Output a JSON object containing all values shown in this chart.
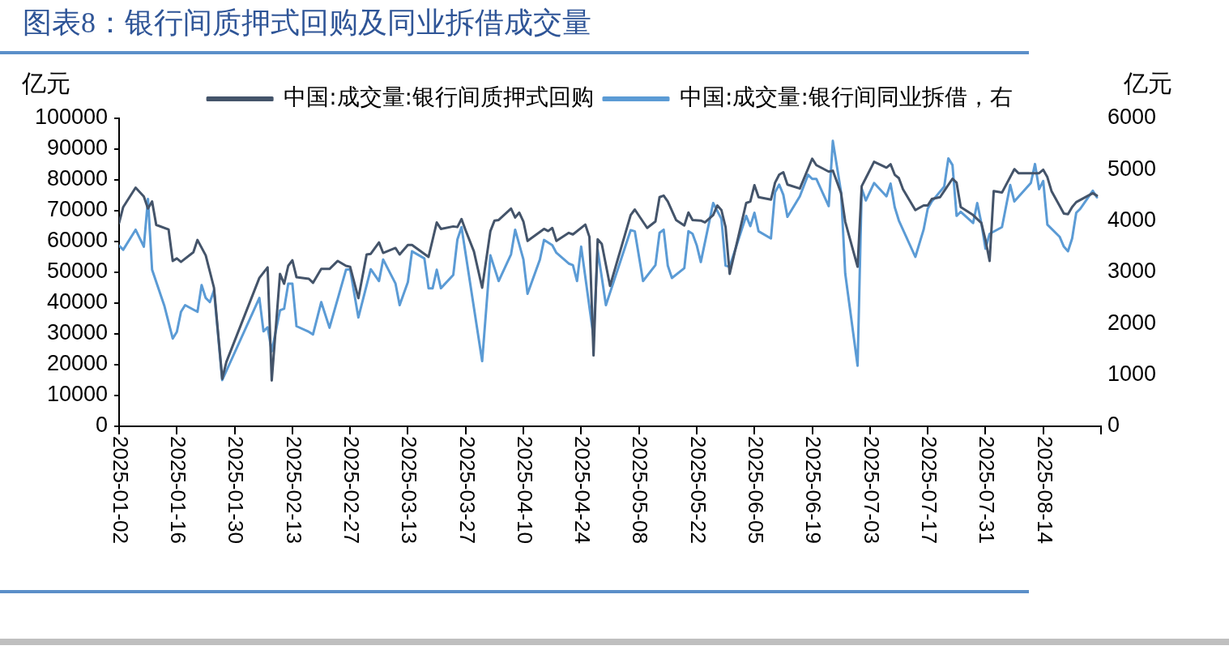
{
  "chart_data": {
    "type": "line",
    "title": "图表8：银行间质押式回购及同业拆借成交量",
    "ylabel": "亿元",
    "y2label": "亿元",
    "xlim": [
      "2025-01-02",
      "2025-08-28"
    ],
    "xticks": [
      "2025-01-02",
      "2025-01-16",
      "2025-01-30",
      "2025-02-13",
      "2025-02-27",
      "2025-03-13",
      "2025-03-27",
      "2025-04-10",
      "2025-04-24",
      "2025-05-08",
      "2025-05-22",
      "2025-06-05",
      "2025-06-19",
      "2025-07-03",
      "2025-07-17",
      "2025-07-31",
      "2025-08-14",
      {
        "value": "2025-08-28",
        "label": null
      }
    ],
    "ylim": [
      0,
      100000
    ],
    "yticks": [
      0,
      10000,
      20000,
      30000,
      40000,
      50000,
      60000,
      70000,
      80000,
      90000,
      100000
    ],
    "y2lim": [
      0,
      6000
    ],
    "y2ticks": [
      0,
      1000,
      2000,
      3000,
      4000,
      5000,
      6000
    ],
    "grid": false,
    "legend": "top",
    "marker": "none",
    "line_style": "solid",
    "series": [
      {
        "name": "中国:成交量:银行间质押式回购",
        "color": "#44546a",
        "x": [
          "2025-01-02",
          "2025-01-03",
          "2025-01-06",
          "2025-01-08",
          "2025-01-09",
          "2025-01-10",
          "2025-01-11",
          "2025-01-14",
          "2025-01-15",
          "2025-01-16",
          "2025-01-17",
          "2025-01-20",
          "2025-01-21",
          "2025-01-23",
          "2025-01-25",
          "2025-01-27",
          "2025-01-28",
          "2025-02-05",
          "2025-02-07",
          "2025-02-08",
          "2025-02-10",
          "2025-02-11",
          "2025-02-12",
          "2025-02-13",
          "2025-02-14",
          "2025-02-17",
          "2025-02-18",
          "2025-02-20",
          "2025-02-22",
          "2025-02-24",
          "2025-02-26",
          "2025-02-27",
          "2025-03-01",
          "2025-03-03",
          "2025-03-04",
          "2025-03-06",
          "2025-03-07",
          "2025-03-10",
          "2025-03-11",
          "2025-03-13",
          "2025-03-14",
          "2025-03-18",
          "2025-03-20",
          "2025-03-21",
          "2025-03-24",
          "2025-03-25",
          "2025-03-26",
          "2025-03-27",
          "2025-03-29",
          "2025-03-31",
          "2025-04-02",
          "2025-04-03",
          "2025-04-04",
          "2025-04-07",
          "2025-04-08",
          "2025-04-09",
          "2025-04-10",
          "2025-04-11",
          "2025-04-15",
          "2025-04-16",
          "2025-04-17",
          "2025-04-18",
          "2025-04-21",
          "2025-04-22",
          "2025-04-25",
          "2025-04-26",
          "2025-04-27",
          "2025-04-28",
          "2025-04-29",
          "2025-05-01",
          "2025-05-06",
          "2025-05-07",
          "2025-05-10",
          "2025-05-12",
          "2025-05-13",
          "2025-05-14",
          "2025-05-15",
          "2025-05-17",
          "2025-05-19",
          "2025-05-20",
          "2025-05-21",
          "2025-05-23",
          "2025-05-24",
          "2025-05-26",
          "2025-05-27",
          "2025-05-28",
          "2025-05-29",
          "2025-05-30",
          "2025-06-03",
          "2025-06-04",
          "2025-06-05",
          "2025-06-06",
          "2025-06-09",
          "2025-06-10",
          "2025-06-11",
          "2025-06-12",
          "2025-06-13",
          "2025-06-16",
          "2025-06-19",
          "2025-06-20",
          "2025-06-23",
          "2025-06-24",
          "2025-06-26",
          "2025-06-27",
          "2025-06-30",
          "2025-07-01",
          "2025-07-02",
          "2025-07-04",
          "2025-07-07",
          "2025-07-08",
          "2025-07-09",
          "2025-07-10",
          "2025-07-11",
          "2025-07-14",
          "2025-07-16",
          "2025-07-17",
          "2025-07-18",
          "2025-07-20",
          "2025-07-21",
          "2025-07-23",
          "2025-07-24",
          "2025-07-25",
          "2025-07-28",
          "2025-07-30",
          "2025-07-31",
          "2025-08-01",
          "2025-08-02",
          "2025-08-04",
          "2025-08-07",
          "2025-08-08",
          "2025-08-13",
          "2025-08-14",
          "2025-08-15",
          "2025-08-16",
          "2025-08-19",
          "2025-08-20",
          "2025-08-21",
          "2025-08-22",
          "2025-08-26",
          "2025-08-27"
        ],
        "values": [
          66000,
          71200,
          77500,
          74600,
          70700,
          73000,
          65400,
          63900,
          53700,
          54500,
          53400,
          56500,
          60500,
          55500,
          45000,
          15400,
          20900,
          48200,
          51600,
          14900,
          49500,
          46300,
          52100,
          53900,
          48400,
          47900,
          46600,
          51100,
          51100,
          53700,
          52100,
          51800,
          41600,
          55800,
          56000,
          59700,
          56300,
          57900,
          55800,
          58900,
          58900,
          55000,
          66200,
          64100,
          64900,
          64700,
          67300,
          63600,
          56800,
          45000,
          63400,
          66800,
          67000,
          70700,
          67800,
          69400,
          66500,
          60200,
          64100,
          63400,
          64400,
          60200,
          62800,
          62300,
          65500,
          61500,
          23000,
          60700,
          59200,
          45600,
          68600,
          70400,
          64400,
          66500,
          74400,
          74900,
          73000,
          67000,
          65200,
          69400,
          67000,
          66800,
          66200,
          68600,
          71700,
          70200,
          64700,
          49500,
          72500,
          73000,
          78300,
          74400,
          73600,
          79100,
          81700,
          82500,
          78500,
          77200,
          86900,
          84800,
          82700,
          83000,
          75700,
          66500,
          51800,
          78000,
          80600,
          85900,
          84000,
          85100,
          81700,
          80600,
          77000,
          70200,
          71700,
          71700,
          73800,
          74400,
          76400,
          80400,
          79100,
          71200,
          68600,
          66000,
          60500,
          53700,
          76400,
          75900,
          83500,
          82200,
          82200,
          83300,
          80900,
          76400,
          69100,
          68900,
          71200,
          72800,
          75700,
          74900
        ]
      },
      {
        "name": "中国:成交量:银行间同业拆借，右",
        "color": "#5b9bd5",
        "axis": "y2",
        "x": [
          "2025-01-02",
          "2025-01-03",
          "2025-01-06",
          "2025-01-08",
          "2025-01-09",
          "2025-01-10",
          "2025-01-13",
          "2025-01-15",
          "2025-01-16",
          "2025-01-17",
          "2025-01-18",
          "2025-01-21",
          "2025-01-22",
          "2025-01-23",
          "2025-01-24",
          "2025-01-25",
          "2025-01-27",
          "2025-02-05",
          "2025-02-06",
          "2025-02-07",
          "2025-02-08",
          "2025-02-10",
          "2025-02-11",
          "2025-02-12",
          "2025-02-13",
          "2025-02-14",
          "2025-02-17",
          "2025-02-18",
          "2025-02-20",
          "2025-02-22",
          "2025-02-26",
          "2025-02-27",
          "2025-03-01",
          "2025-03-04",
          "2025-03-06",
          "2025-03-07",
          "2025-03-10",
          "2025-03-11",
          "2025-03-13",
          "2025-03-14",
          "2025-03-17",
          "2025-03-18",
          "2025-03-19",
          "2025-03-20",
          "2025-03-21",
          "2025-03-24",
          "2025-03-25",
          "2025-03-26",
          "2025-03-31",
          "2025-04-02",
          "2025-04-04",
          "2025-04-07",
          "2025-04-08",
          "2025-04-10",
          "2025-04-11",
          "2025-04-14",
          "2025-04-15",
          "2025-04-17",
          "2025-04-18",
          "2025-04-21",
          "2025-04-22",
          "2025-04-23",
          "2025-04-24",
          "2025-04-27",
          "2025-04-28",
          "2025-04-30",
          "2025-05-06",
          "2025-05-07",
          "2025-05-09",
          "2025-05-12",
          "2025-05-13",
          "2025-05-14",
          "2025-05-15",
          "2025-05-16",
          "2025-05-19",
          "2025-05-20",
          "2025-05-21",
          "2025-05-22",
          "2025-05-23",
          "2025-05-26",
          "2025-05-28",
          "2025-05-29",
          "2025-05-30",
          "2025-06-03",
          "2025-06-04",
          "2025-06-05",
          "2025-06-06",
          "2025-06-09",
          "2025-06-10",
          "2025-06-11",
          "2025-06-12",
          "2025-06-13",
          "2025-06-16",
          "2025-06-18",
          "2025-06-19",
          "2025-06-20",
          "2025-06-23",
          "2025-06-24",
          "2025-06-26",
          "2025-06-27",
          "2025-06-30",
          "2025-07-01",
          "2025-07-02",
          "2025-07-04",
          "2025-07-07",
          "2025-07-08",
          "2025-07-09",
          "2025-07-10",
          "2025-07-14",
          "2025-07-16",
          "2025-07-17",
          "2025-07-18",
          "2025-07-21",
          "2025-07-22",
          "2025-07-23",
          "2025-07-24",
          "2025-07-25",
          "2025-07-28",
          "2025-07-29",
          "2025-07-30",
          "2025-07-31",
          "2025-08-01",
          "2025-08-04",
          "2025-08-06",
          "2025-08-07",
          "2025-08-11",
          "2025-08-12",
          "2025-08-13",
          "2025-08-14",
          "2025-08-15",
          "2025-08-18",
          "2025-08-19",
          "2025-08-20",
          "2025-08-21",
          "2025-08-22",
          "2025-08-23",
          "2025-08-26",
          "2025-08-27"
        ],
        "values": [
          3520,
          3440,
          3830,
          3500,
          4430,
          3050,
          2340,
          1710,
          1840,
          2230,
          2360,
          2230,
          2750,
          2500,
          2420,
          2650,
          900,
          2500,
          1850,
          1930,
          1460,
          2260,
          2290,
          2780,
          2780,
          1950,
          1840,
          1790,
          2420,
          1920,
          3050,
          3060,
          2120,
          3060,
          2830,
          3250,
          2780,
          2360,
          2810,
          3410,
          3270,
          2690,
          2690,
          3050,
          2690,
          2950,
          3640,
          3880,
          1270,
          3330,
          2830,
          3350,
          3830,
          3250,
          2580,
          3250,
          3630,
          3530,
          3380,
          3170,
          3140,
          2830,
          3500,
          1740,
          3440,
          2360,
          3820,
          3800,
          2830,
          3140,
          3770,
          3830,
          3130,
          2890,
          3080,
          3800,
          3750,
          3530,
          3200,
          4350,
          4040,
          3130,
          3110,
          4100,
          3900,
          4160,
          3800,
          3660,
          4560,
          4710,
          4510,
          4080,
          4480,
          4900,
          4820,
          4820,
          4290,
          5560,
          4560,
          2980,
          1180,
          4630,
          4400,
          4740,
          4480,
          4730,
          4270,
          4010,
          3300,
          3830,
          4240,
          4380,
          4670,
          5220,
          5090,
          4100,
          4180,
          3960,
          4350,
          3960,
          3460,
          3750,
          3880,
          4700,
          4380,
          4740,
          5110,
          4620,
          4780,
          3930,
          3690,
          3500,
          3410,
          3660,
          4160,
          4240,
          4590,
          4460
        ]
      }
    ]
  }
}
